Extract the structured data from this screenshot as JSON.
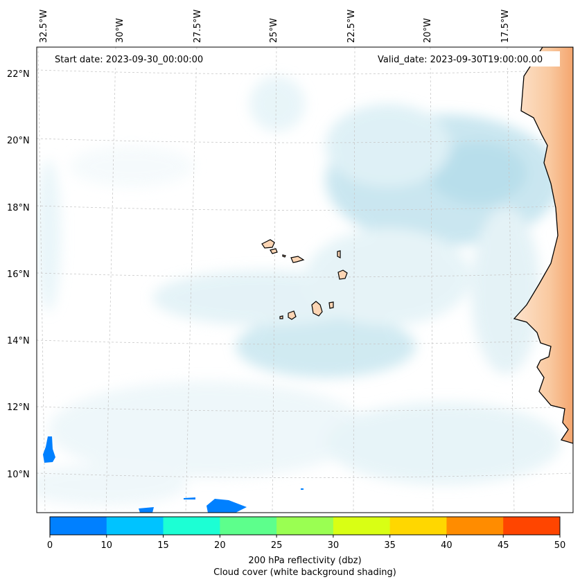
{
  "map": {
    "start_date_label": "Start date: 2023-09-30_00:00:00",
    "valid_date_label": "Valid_date: 2023-09-30T19:00:00.00",
    "lon_labels": [
      "32.5°W",
      "30°W",
      "27.5°W",
      "25°W",
      "22.5°W",
      "20°W",
      "17.5°W"
    ],
    "lat_labels": [
      "22°N",
      "20°N",
      "18°N",
      "16°N",
      "14°N",
      "12°N",
      "10°N"
    ],
    "land_color": "#fcd5b4",
    "coast_color": "#000000",
    "cloud_color": "#a9d8e6",
    "grid_style": "dashed light gray"
  },
  "colorbar": {
    "ticks": [
      "0",
      "10",
      "15",
      "20",
      "25",
      "30",
      "35",
      "40",
      "45",
      "50"
    ],
    "colors": [
      "#0080ff",
      "#00c3ff",
      "#1cffd4",
      "#5dff8c",
      "#9aff52",
      "#d9ff14",
      "#ffd700",
      "#ff8c00",
      "#ff4500"
    ],
    "label_line1": "200 hPa reflectivity (dbz)",
    "label_line2": "Cloud cover (white background shading)"
  }
}
